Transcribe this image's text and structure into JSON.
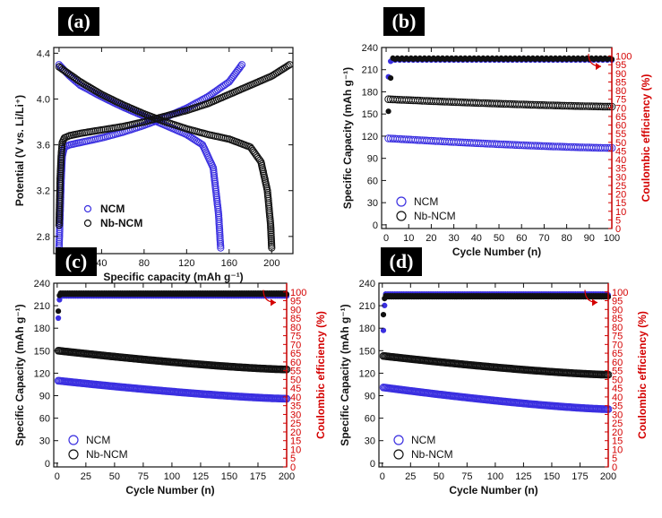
{
  "figure": {
    "panels": [
      {
        "label": "(a)",
        "type": "scatter",
        "xlabel": "Specific capacity (mAh g⁻¹)",
        "ylabel": "Potential (V vs. Li/Li⁺)",
        "xlim": [
          -5,
          220
        ],
        "ylim": [
          2.65,
          4.45
        ],
        "xticks": [
          0,
          40,
          80,
          120,
          160,
          200
        ],
        "yticks": [
          2.8,
          3.2,
          3.6,
          4.0,
          4.4
        ],
        "ytick_labels": [
          "2.8",
          "3.2",
          "3.6",
          "4.0",
          "4.4"
        ],
        "legend_position": "lower-left",
        "legend_bold": true,
        "series": [
          {
            "name": "NCM",
            "color": "#3a2fe0",
            "role": "charge",
            "points": [
              [
                0,
                2.7
              ],
              [
                1,
                3.0
              ],
              [
                2,
                3.3
              ],
              [
                3,
                3.5
              ],
              [
                5,
                3.58
              ],
              [
                10,
                3.6
              ],
              [
                20,
                3.62
              ],
              [
                40,
                3.66
              ],
              [
                60,
                3.71
              ],
              [
                80,
                3.77
              ],
              [
                100,
                3.84
              ],
              [
                120,
                3.92
              ],
              [
                140,
                4.02
              ],
              [
                160,
                4.15
              ],
              [
                172,
                4.3
              ]
            ]
          },
          {
            "name": "NCM",
            "color": "#3a2fe0",
            "role": "discharge",
            "points": [
              [
                0,
                4.3
              ],
              [
                10,
                4.2
              ],
              [
                20,
                4.12
              ],
              [
                40,
                4.02
              ],
              [
                60,
                3.93
              ],
              [
                80,
                3.85
              ],
              [
                100,
                3.77
              ],
              [
                120,
                3.69
              ],
              [
                135,
                3.6
              ],
              [
                145,
                3.4
              ],
              [
                150,
                3.0
              ],
              [
                152,
                2.7
              ]
            ]
          },
          {
            "name": "Nb-NCM",
            "color": "#111111",
            "role": "charge",
            "points": [
              [
                0,
                2.9
              ],
              [
                1,
                3.3
              ],
              [
                2,
                3.5
              ],
              [
                3,
                3.62
              ],
              [
                5,
                3.66
              ],
              [
                10,
                3.68
              ],
              [
                20,
                3.7
              ],
              [
                40,
                3.73
              ],
              [
                60,
                3.76
              ],
              [
                80,
                3.8
              ],
              [
                100,
                3.85
              ],
              [
                120,
                3.9
              ],
              [
                140,
                3.96
              ],
              [
                160,
                4.04
              ],
              [
                180,
                4.12
              ],
              [
                200,
                4.2
              ],
              [
                217,
                4.3
              ]
            ]
          },
          {
            "name": "Nb-NCM",
            "color": "#111111",
            "role": "discharge",
            "points": [
              [
                0,
                4.28
              ],
              [
                20,
                4.15
              ],
              [
                40,
                4.04
              ],
              [
                60,
                3.95
              ],
              [
                80,
                3.87
              ],
              [
                100,
                3.8
              ],
              [
                120,
                3.74
              ],
              [
                140,
                3.69
              ],
              [
                160,
                3.65
              ],
              [
                180,
                3.58
              ],
              [
                190,
                3.45
              ],
              [
                196,
                3.2
              ],
              [
                199,
                2.9
              ],
              [
                200,
                2.7
              ]
            ]
          }
        ]
      },
      {
        "label": "(b)",
        "type": "scatter",
        "xlabel": "Cycle Number (n)",
        "ylabel": "Specific Capacity (mAh g⁻¹)",
        "ylabel2": "Coulombic efficiency (%)",
        "xlim": [
          -2,
          100
        ],
        "ylim": [
          -5,
          240
        ],
        "y2lim": [
          0,
          105
        ],
        "xticks": [
          0,
          10,
          20,
          30,
          40,
          50,
          60,
          70,
          80,
          90,
          100
        ],
        "yticks": [
          0,
          30,
          60,
          90,
          120,
          150,
          180,
          210,
          240
        ],
        "y2ticks": [
          0,
          5,
          10,
          15,
          20,
          25,
          30,
          35,
          40,
          45,
          50,
          55,
          60,
          65,
          70,
          75,
          80,
          85,
          90,
          95,
          100
        ],
        "legend_position": "lower-left",
        "legend_bold": false,
        "series": [
          {
            "name": "NCM",
            "color": "#3a2fe0",
            "cycles": 100,
            "start": 117,
            "end": 104
          },
          {
            "name": "Nb-NCM",
            "color": "#111111",
            "cycles": 100,
            "start": 170,
            "end": 160
          },
          {
            "name": "NCM efficiency",
            "color": "#3a2fe0",
            "axis": "y2",
            "cycles": 100,
            "first": 88,
            "value": 98
          },
          {
            "name": "Nb-NCM efficiency",
            "color": "#111111",
            "axis": "y2",
            "cycles": 100,
            "first": 68,
            "value": 98.5
          }
        ]
      },
      {
        "label": "(c)",
        "type": "scatter",
        "xlabel": "Cycle Number (n)",
        "ylabel": "Specific Capacity (mAh g⁻¹)",
        "ylabel2": "Coulombic efficiency (%)",
        "xlim": [
          -3,
          200
        ],
        "ylim": [
          -5,
          240
        ],
        "y2lim": [
          0,
          105
        ],
        "xticks": [
          0,
          25,
          50,
          75,
          100,
          125,
          150,
          175,
          200
        ],
        "yticks": [
          0,
          30,
          60,
          90,
          120,
          150,
          180,
          210,
          240
        ],
        "y2ticks": [
          0,
          5,
          10,
          15,
          20,
          25,
          30,
          35,
          40,
          45,
          50,
          55,
          60,
          65,
          70,
          75,
          80,
          85,
          90,
          95,
          100
        ],
        "legend_position": "lower-left",
        "legend_bold": false,
        "series": [
          {
            "name": "NCM",
            "color": "#3a2fe0",
            "cycles": 200,
            "start": 110,
            "end": 86
          },
          {
            "name": "Nb-NCM",
            "color": "#111111",
            "cycles": 200,
            "start": 150,
            "end": 125
          },
          {
            "name": "NCM efficiency",
            "color": "#3a2fe0",
            "axis": "y2",
            "cycles": 200,
            "first": 85,
            "value": 98
          },
          {
            "name": "Nb-NCM efficiency",
            "color": "#111111",
            "axis": "y2",
            "cycles": 200,
            "first": 89,
            "value": 99
          }
        ]
      },
      {
        "label": "(d)",
        "type": "scatter",
        "xlabel": "Cycle Number (n)",
        "ylabel": "Specific Capacity (mAh g⁻¹)",
        "ylabel2": "Coulombic efficiency (%)",
        "xlim": [
          -3,
          200
        ],
        "ylim": [
          -5,
          240
        ],
        "y2lim": [
          0,
          105
        ],
        "xticks": [
          0,
          25,
          50,
          75,
          100,
          125,
          150,
          175,
          200
        ],
        "yticks": [
          0,
          30,
          60,
          90,
          120,
          150,
          180,
          210,
          240
        ],
        "y2ticks": [
          0,
          5,
          10,
          15,
          20,
          25,
          30,
          35,
          40,
          45,
          50,
          55,
          60,
          65,
          70,
          75,
          80,
          85,
          90,
          95,
          100
        ],
        "legend_position": "lower-left",
        "legend_bold": false,
        "series": [
          {
            "name": "NCM",
            "color": "#3a2fe0",
            "cycles": 200,
            "start": 101,
            "end": 72
          },
          {
            "name": "Nb-NCM",
            "color": "#111111",
            "cycles": 200,
            "start": 143,
            "end": 118
          },
          {
            "name": "NCM efficiency",
            "color": "#3a2fe0",
            "axis": "y2",
            "cycles": 200,
            "first": 78,
            "value": 98.5
          },
          {
            "name": "Nb-NCM efficiency",
            "color": "#111111",
            "axis": "y2",
            "cycles": 200,
            "first": 87,
            "value": 97.5
          }
        ]
      }
    ]
  },
  "chart_data": [
    {
      "type": "scatter",
      "title": "(a)",
      "xlabel": "Specific capacity (mAh g⁻¹)",
      "ylabel": "Potential (V vs. Li/Li⁺)",
      "legend": [
        "NCM",
        "Nb-NCM"
      ],
      "xlim": [
        0,
        220
      ],
      "ylim": [
        2.7,
        4.4
      ],
      "series": [
        {
          "name": "NCM",
          "charge_capacity": 172,
          "discharge_capacity": 152,
          "upper_voltage": 4.3,
          "lower_voltage": 2.7
        },
        {
          "name": "Nb-NCM",
          "charge_capacity": 217,
          "discharge_capacity": 200,
          "upper_voltage": 4.3,
          "lower_voltage": 2.7
        }
      ]
    },
    {
      "type": "scatter",
      "title": "(b)",
      "xlabel": "Cycle Number (n)",
      "ylabel": "Specific Capacity (mAh g⁻¹)",
      "ylabel2": "Coulombic efficiency (%)",
      "legend": [
        "NCM",
        "Nb-NCM"
      ],
      "xlim": [
        0,
        100
      ],
      "ylim": [
        0,
        240
      ],
      "y2lim": [
        0,
        100
      ],
      "series": [
        {
          "name": "NCM",
          "start": 117,
          "end": 104
        },
        {
          "name": "Nb-NCM",
          "start": 170,
          "end": 160
        }
      ]
    },
    {
      "type": "scatter",
      "title": "(c)",
      "xlabel": "Cycle Number (n)",
      "ylabel": "Specific Capacity (mAh g⁻¹)",
      "ylabel2": "Coulombic efficiency (%)",
      "legend": [
        "NCM",
        "Nb-NCM"
      ],
      "xlim": [
        0,
        200
      ],
      "ylim": [
        0,
        240
      ],
      "y2lim": [
        0,
        100
      ],
      "series": [
        {
          "name": "NCM",
          "start": 110,
          "end": 86
        },
        {
          "name": "Nb-NCM",
          "start": 150,
          "end": 125
        }
      ]
    },
    {
      "type": "scatter",
      "title": "(d)",
      "xlabel": "Cycle Number (n)",
      "ylabel": "Specific Capacity (mAh g⁻¹)",
      "ylabel2": "Coulombic efficiency (%)",
      "legend": [
        "NCM",
        "Nb-NCM"
      ],
      "xlim": [
        0,
        200
      ],
      "ylim": [
        0,
        240
      ],
      "y2lim": [
        0,
        100
      ],
      "series": [
        {
          "name": "NCM",
          "start": 101,
          "end": 72
        },
        {
          "name": "Nb-NCM",
          "start": 143,
          "end": 118
        }
      ]
    }
  ]
}
